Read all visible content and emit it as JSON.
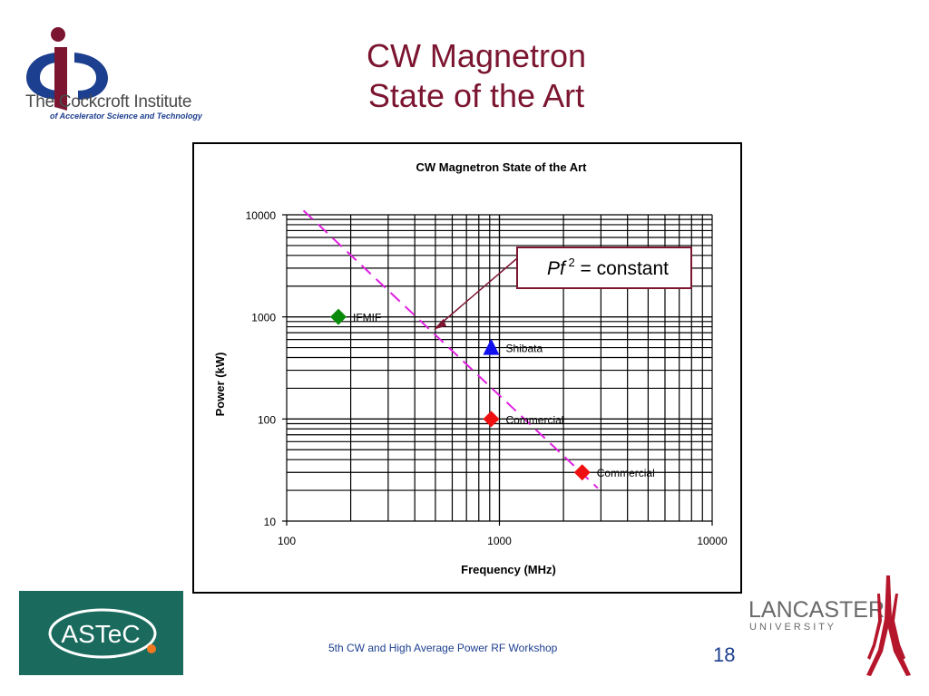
{
  "slide": {
    "title_line1": "CW Magnetron",
    "title_line2": "State of the Art",
    "footer": "5th CW and High Average Power RF Workshop",
    "page_number": "18"
  },
  "logos": {
    "cockcroft_name": "The Cockcroft Institute",
    "cockcroft_subtitle": "of Accelerator Science and Technology",
    "astec_text": "ASTeC",
    "lancaster_line1": "LANCASTER",
    "lancaster_line2": "U N I V E R S I T Y"
  },
  "colors": {
    "title": "#7b1530",
    "footer": "#1d3f8f",
    "astec_bg": "#1a6b5e",
    "lancaster_red": "#b5162b"
  },
  "chart_data": {
    "type": "scatter",
    "title": "CW Magnetron State of the Art",
    "xlabel": "Frequency (MHz)",
    "ylabel": "Power (kW)",
    "x_scale": "log",
    "y_scale": "log",
    "xlim": [
      100,
      10000
    ],
    "ylim": [
      10,
      10000
    ],
    "x_ticks": [
      "100",
      "1000",
      "10000"
    ],
    "y_ticks": [
      "10",
      "100",
      "1000",
      "10000"
    ],
    "grid": true,
    "points": [
      {
        "label": "IFMIF",
        "x": 175,
        "y": 1000,
        "marker": "diamond",
        "color": "#0a8a0a"
      },
      {
        "label": "Shibata",
        "x": 915,
        "y": 500,
        "marker": "triangle",
        "color": "#1010ee"
      },
      {
        "label": "Commercial",
        "x": 915,
        "y": 100,
        "marker": "diamond",
        "color": "#ee1010"
      },
      {
        "label": "Commercial",
        "x": 2450,
        "y": 30,
        "marker": "diamond",
        "color": "#ee1010"
      }
    ],
    "trend_line": {
      "style": "dashed",
      "color": "#e020e0",
      "x": [
        120,
        2900
      ],
      "y": [
        11000,
        21
      ]
    },
    "annotation": {
      "text_italic": "Pf",
      "superscript": "2",
      "text": " = constant",
      "arrow_to": {
        "x": 490,
        "y": 750
      }
    }
  }
}
